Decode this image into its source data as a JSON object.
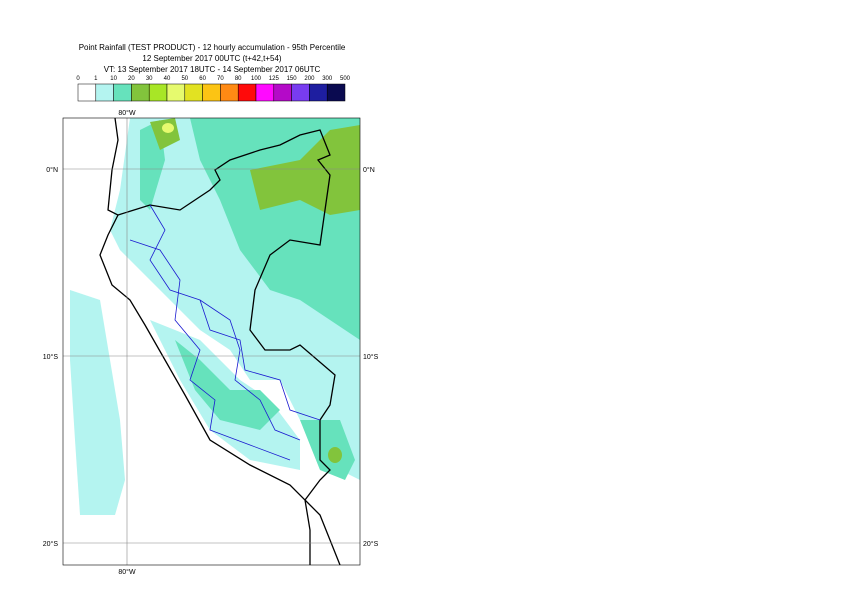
{
  "header": {
    "title": "Point Rainfall (TEST PRODUCT) - 12 hourly accumulation - 95th Percentile",
    "base_time": "12 September 2017 00UTC (t+42,t+54)",
    "valid_time": "VT: 13 September 2017 18UTC - 14 September 2017 06UTC"
  },
  "legend": {
    "thresholds": [
      0,
      1,
      10,
      20,
      30,
      40,
      50,
      60,
      70,
      80,
      100,
      125,
      150,
      200,
      300,
      500
    ],
    "colors": [
      "#ffffff",
      "#b4f4f0",
      "#66e2bc",
      "#82c43c",
      "#a8e626",
      "#e6fa6e",
      "#e2e222",
      "#fcc414",
      "#ff8a14",
      "#ff0a0a",
      "#ff0aff",
      "#b40ac8",
      "#783cf0",
      "#1e1ea0",
      "#0a0a50"
    ]
  },
  "map": {
    "lon_labels": [
      "80°W"
    ],
    "lat_labels": [
      "0°N",
      "10°S",
      "20°S"
    ]
  }
}
